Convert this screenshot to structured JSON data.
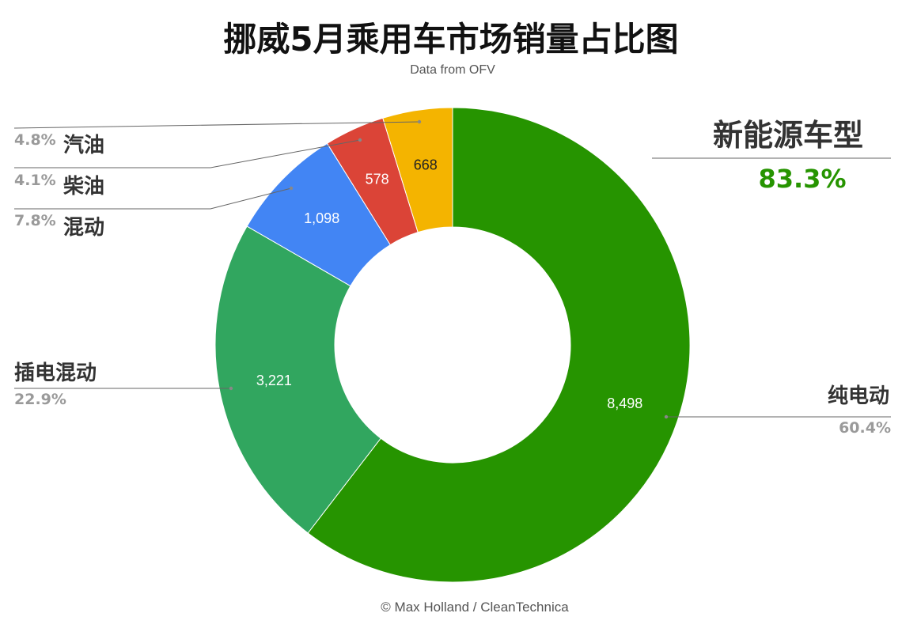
{
  "chart_data": {
    "type": "pie",
    "title": "挪威5月乘用车市场销量占比图",
    "subtitle": "Data from OFV",
    "footer": "© Max Holland / CleanTechnica",
    "slices": [
      {
        "label": "纯电动",
        "value": 8498,
        "value_label": "8,498",
        "percent": "60.4%",
        "color": "#269400",
        "text_color": "#ffffff"
      },
      {
        "label": "插电混动",
        "value": 3221,
        "value_label": "3,221",
        "percent": "22.9%",
        "color": "#31a65f",
        "text_color": "#ffffff"
      },
      {
        "label": "混动",
        "value": 1098,
        "value_label": "1,098",
        "percent": "7.8%",
        "color": "#4285f4",
        "text_color": "#ffffff"
      },
      {
        "label": "柴油",
        "value": 578,
        "value_label": "578",
        "percent": "4.1%",
        "color": "#db4437",
        "text_color": "#ffffff"
      },
      {
        "label": "汽油",
        "value": 668,
        "value_label": "668",
        "percent": "4.8%",
        "color": "#f4b400",
        "text_color": "#222222"
      }
    ],
    "annotation": {
      "label": "新能源车型",
      "value": "83.3%",
      "color": "#269400"
    },
    "legend": "none"
  }
}
